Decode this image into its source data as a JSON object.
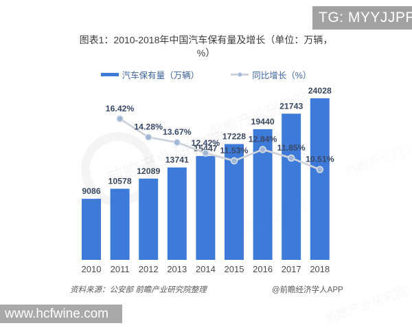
{
  "overlay": {
    "tg_badge": "TG: MYYJJPP",
    "watermark_url": "www.hcfwine.com"
  },
  "title": "图表1：2010-2018年中国汽车保有量及增长（单位：万辆，%）",
  "legend": {
    "bar_label": "汽车保有量（万辆）",
    "line_label": "同比增长（%）"
  },
  "chart_data": {
    "type": "bar",
    "title": "图表1：2010-2018年中国汽车保有量及增长（单位：万辆，%）",
    "categories": [
      "2010",
      "2011",
      "2012",
      "2013",
      "2014",
      "2015",
      "2016",
      "2017",
      "2018"
    ],
    "series": [
      {
        "name": "汽车保有量（万辆）",
        "type": "bar",
        "color": "#3e7ad8",
        "values": [
          9086,
          10578,
          12089,
          13741,
          15447,
          17228,
          19440,
          21743,
          24028
        ]
      },
      {
        "name": "同比增长（%）",
        "type": "line",
        "color": "#cdd1d8",
        "point_color": "#9fb6d4",
        "values": [
          null,
          16.42,
          14.28,
          13.67,
          12.42,
          11.53,
          12.84,
          11.85,
          10.51
        ],
        "labels": [
          "",
          "16.42%",
          "14.28%",
          "13.67%",
          "12.42%",
          "11.53%",
          "12.84%",
          "11.85%",
          "10.51%"
        ]
      }
    ],
    "xlabel": "",
    "ylabel": "",
    "legend_position": "top",
    "axes_visible": false,
    "grid": false,
    "bar_axis_max": 26000,
    "pct_axis_max": 20
  },
  "footer": {
    "source": "资料来源：公安部 前瞻产业研究院整理",
    "credit": "@前瞻经济学人APP"
  },
  "background_watermark": "前瞻产业研究院"
}
